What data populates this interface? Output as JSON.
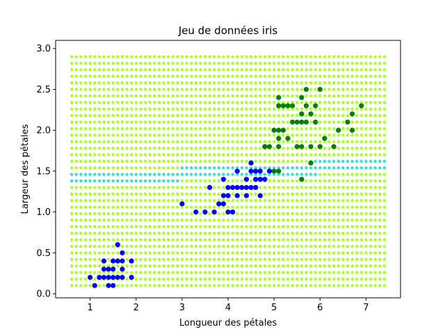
{
  "chart_data": {
    "type": "scatter",
    "title": "Jeu de données iris",
    "xlabel": "Longueur des pétales",
    "ylabel": "Largeur des pétales",
    "xlim": [
      0.25,
      7.75
    ],
    "ylim": [
      -0.05,
      3.1
    ],
    "xticks": [
      1,
      2,
      3,
      4,
      5,
      6,
      7
    ],
    "yticks": [
      0.0,
      0.5,
      1.0,
      1.5,
      2.0,
      2.5,
      3.0
    ],
    "xtick_labels": [
      "1",
      "2",
      "3",
      "4",
      "5",
      "6",
      "7"
    ],
    "ytick_labels": [
      "0.0",
      "0.5",
      "1.0",
      "1.5",
      "2.0",
      "2.5",
      "3.0"
    ],
    "grid": false,
    "background_grid": {
      "x_start": 0.6,
      "x_end": 7.4,
      "x_step": 0.1,
      "y_start": 0.1,
      "y_end": 2.9,
      "y_step": 0.08,
      "colors": {
        "setosa": "#adff2f",
        "versicolor": "#40e0d0",
        "virginica": "#adff2f"
      },
      "regions": [
        {
          "class": "versicolor",
          "x_min": 0.6,
          "x_max": 2.95,
          "y_min": 1.35,
          "y_max": 1.47
        },
        {
          "class": "versicolor",
          "x_min": 2.95,
          "x_max": 5.9,
          "y_min": 1.43,
          "y_max": 1.55
        },
        {
          "class": "versicolor",
          "x_min": 5.9,
          "x_max": 7.4,
          "y_min": 1.51,
          "y_max": 1.63
        }
      ]
    },
    "series": [
      {
        "color": "#0000ff",
        "points": [
          [
            1.0,
            0.2
          ],
          [
            1.1,
            0.1
          ],
          [
            1.2,
            0.2
          ],
          [
            1.3,
            0.2
          ],
          [
            1.3,
            0.3
          ],
          [
            1.3,
            0.4
          ],
          [
            1.4,
            0.1
          ],
          [
            1.4,
            0.2
          ],
          [
            1.4,
            0.3
          ],
          [
            1.5,
            0.1
          ],
          [
            1.5,
            0.2
          ],
          [
            1.5,
            0.3
          ],
          [
            1.5,
            0.4
          ],
          [
            1.6,
            0.2
          ],
          [
            1.6,
            0.4
          ],
          [
            1.6,
            0.6
          ],
          [
            1.7,
            0.2
          ],
          [
            1.7,
            0.3
          ],
          [
            1.7,
            0.4
          ],
          [
            1.7,
            0.5
          ],
          [
            1.9,
            0.2
          ],
          [
            1.9,
            0.4
          ],
          [
            3.0,
            1.1
          ],
          [
            3.3,
            1.0
          ],
          [
            3.5,
            1.0
          ],
          [
            3.6,
            1.3
          ],
          [
            3.7,
            1.0
          ],
          [
            3.8,
            1.1
          ],
          [
            3.9,
            1.1
          ],
          [
            3.9,
            1.2
          ],
          [
            3.9,
            1.4
          ],
          [
            4.0,
            1.0
          ],
          [
            4.0,
            1.2
          ],
          [
            4.0,
            1.3
          ],
          [
            4.1,
            1.0
          ],
          [
            4.1,
            1.3
          ],
          [
            4.2,
            1.2
          ],
          [
            4.2,
            1.3
          ],
          [
            4.2,
            1.5
          ],
          [
            4.3,
            1.3
          ],
          [
            4.4,
            1.2
          ],
          [
            4.4,
            1.3
          ],
          [
            4.4,
            1.4
          ],
          [
            4.5,
            1.3
          ],
          [
            4.5,
            1.5
          ],
          [
            4.5,
            1.6
          ],
          [
            4.6,
            1.3
          ],
          [
            4.6,
            1.4
          ],
          [
            4.6,
            1.5
          ],
          [
            4.7,
            1.2
          ],
          [
            4.7,
            1.4
          ],
          [
            4.7,
            1.5
          ],
          [
            4.8,
            1.4
          ],
          [
            4.8,
            1.8
          ],
          [
            4.9,
            1.5
          ]
        ]
      },
      {
        "color": "#008000",
        "points": [
          [
            4.8,
            1.8
          ],
          [
            4.9,
            1.8
          ],
          [
            5.0,
            1.5
          ],
          [
            5.0,
            2.0
          ],
          [
            5.1,
            1.5
          ],
          [
            5.1,
            1.8
          ],
          [
            5.1,
            1.9
          ],
          [
            5.1,
            2.0
          ],
          [
            5.1,
            2.3
          ],
          [
            5.1,
            2.4
          ],
          [
            5.2,
            2.0
          ],
          [
            5.2,
            2.3
          ],
          [
            5.3,
            1.9
          ],
          [
            5.3,
            2.3
          ],
          [
            5.4,
            2.1
          ],
          [
            5.4,
            2.3
          ],
          [
            5.5,
            1.8
          ],
          [
            5.5,
            2.1
          ],
          [
            5.6,
            1.4
          ],
          [
            5.6,
            1.8
          ],
          [
            5.6,
            2.1
          ],
          [
            5.6,
            2.2
          ],
          [
            5.6,
            2.4
          ],
          [
            5.7,
            2.1
          ],
          [
            5.7,
            2.3
          ],
          [
            5.7,
            2.5
          ],
          [
            5.8,
            1.6
          ],
          [
            5.8,
            1.8
          ],
          [
            5.8,
            2.2
          ],
          [
            5.9,
            2.1
          ],
          [
            5.9,
            2.3
          ],
          [
            6.0,
            1.8
          ],
          [
            6.0,
            2.5
          ],
          [
            6.1,
            1.9
          ],
          [
            6.3,
            1.8
          ],
          [
            6.4,
            2.0
          ],
          [
            6.6,
            2.1
          ],
          [
            6.7,
            2.0
          ],
          [
            6.7,
            2.2
          ],
          [
            6.9,
            2.3
          ]
        ]
      }
    ]
  }
}
